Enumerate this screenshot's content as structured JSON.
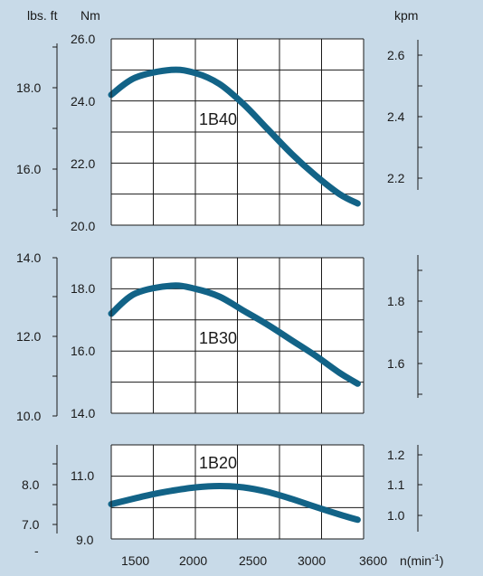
{
  "colors": {
    "background": "#c8dae8",
    "plot_background": "#ffffff",
    "curve": "#126387",
    "grid": "#1a1a1a"
  },
  "header": {
    "lbs_ft_label": "lbs. ft",
    "nm_label": "Nm",
    "kpm_label": "kpm"
  },
  "x_axis": {
    "ticks": [
      "1500",
      "2000",
      "2500",
      "3000",
      "3600"
    ],
    "label_main": "n(min",
    "label_sup": "-1",
    "label_close": ")"
  },
  "stray_mark": "-",
  "chart_data": [
    {
      "type": "line",
      "title": "1B40",
      "x": [
        1500,
        1700,
        2000,
        2200,
        2400,
        2600,
        2800,
        3000,
        3200,
        3400,
        3550
      ],
      "series": [
        {
          "values": [
            24.2,
            24.75,
            25.0,
            24.9,
            24.55,
            23.9,
            23.1,
            22.3,
            21.6,
            21.0,
            20.7
          ]
        }
      ],
      "xlim": [
        1500,
        3600
      ],
      "nm_range": [
        20.0,
        26.0
      ],
      "nm_ticks": [
        "26.0",
        "24.0",
        "22.0",
        "20.0"
      ],
      "lbsft_ticks": [
        "18.0",
        "16.0"
      ],
      "kpm_ticks": [
        "2.6",
        "2.4",
        "2.2"
      ],
      "grid": true
    },
    {
      "type": "line",
      "title": "1B30",
      "x": [
        1500,
        1700,
        2000,
        2200,
        2400,
        2600,
        2800,
        3000,
        3200,
        3400,
        3550
      ],
      "series": [
        {
          "values": [
            17.2,
            17.85,
            18.1,
            18.0,
            17.75,
            17.3,
            16.85,
            16.35,
            15.85,
            15.3,
            14.95
          ]
        }
      ],
      "xlim": [
        1500,
        3600
      ],
      "nm_range": [
        14.0,
        19.0
      ],
      "nm_ticks": [
        "18.0",
        "16.0",
        "14.0"
      ],
      "lbsft_ticks": [
        "14.0",
        "12.0",
        "10.0"
      ],
      "kpm_ticks": [
        "1.8",
        "1.6"
      ],
      "grid": true
    },
    {
      "type": "line",
      "title": "1B20",
      "x": [
        1500,
        1800,
        2000,
        2200,
        2400,
        2600,
        2800,
        3000,
        3200,
        3400,
        3550
      ],
      "series": [
        {
          "values": [
            10.0,
            10.25,
            10.38,
            10.48,
            10.52,
            10.48,
            10.35,
            10.15,
            9.92,
            9.7,
            9.55
          ]
        }
      ],
      "xlim": [
        1500,
        3600
      ],
      "nm_range": [
        9.0,
        11.7
      ],
      "nm_ticks": [
        "11.0",
        "9.0"
      ],
      "lbsft_ticks": [
        "8.0",
        "7.0"
      ],
      "kpm_ticks": [
        "1.2",
        "1.1",
        "1.0"
      ],
      "grid": true
    }
  ]
}
